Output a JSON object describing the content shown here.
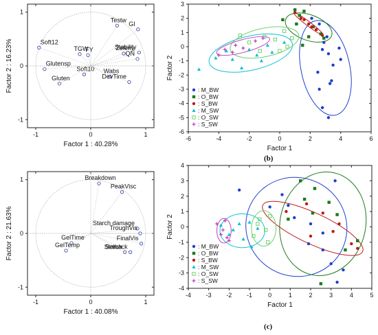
{
  "panel_labels": {
    "b": "(b)",
    "c": "(c)"
  },
  "chart_data": [
    {
      "id": "loadings1",
      "type": "scatter",
      "subtype": "loading-plot",
      "xlabel": "Factor 1 : 40.28%",
      "ylabel": "Factor 2 : 16.23%",
      "xlim": [
        -1.15,
        1.15
      ],
      "ylim": [
        -1.15,
        1.15
      ],
      "xticks": [
        "-1",
        "0",
        "1"
      ],
      "yticks": [
        "1",
        "0",
        "-1"
      ],
      "grid": false,
      "unit_circle": true,
      "points": [
        {
          "label": "Testw",
          "x": 0.48,
          "y": 0.75
        },
        {
          "label": "GI",
          "x": 0.86,
          "y": 0.68
        },
        {
          "label": "Soft12",
          "x": -0.94,
          "y": 0.34
        },
        {
          "label": "TGW",
          "x": -0.2,
          "y": 0.22
        },
        {
          "label": "FY",
          "x": -0.05,
          "y": 0.2
        },
        {
          "label": "Zeleny",
          "x": 0.6,
          "y": 0.23
        },
        {
          "label": "Stability",
          "x": 0.88,
          "y": 0.25
        },
        {
          "label": "QN",
          "x": 0.85,
          "y": 0.13
        },
        {
          "label": "Glutensp",
          "x": -0.84,
          "y": -0.06
        },
        {
          "label": "Soft10",
          "x": -0.12,
          "y": -0.16
        },
        {
          "label": "Wabs",
          "x": 0.35,
          "y": -0.2
        },
        {
          "label": "DevTime",
          "x": 0.7,
          "y": -0.3
        },
        {
          "label": "Gluten",
          "x": -0.57,
          "y": -0.33
        }
      ]
    },
    {
      "id": "scores1",
      "type": "scatter",
      "xlabel": "Factor 1",
      "ylabel": "Factor 2",
      "xlim": [
        -6,
        6
      ],
      "ylim": [
        -6,
        3
      ],
      "xticks": [
        "-6",
        "-4",
        "-2",
        "0",
        "2",
        "4",
        "6"
      ],
      "yticks": [
        "3",
        "2",
        "1",
        "0",
        "-1",
        "-2",
        "-3",
        "-4",
        "-5",
        "-6"
      ],
      "grid": false,
      "legend_position": "bottom-left",
      "series": [
        {
          "name": ": M_BW",
          "color": "#1f3fd0",
          "marker": "dot",
          "points": [
            [
              2.1,
              2.0
            ],
            [
              2.6,
              1.6
            ],
            [
              3.1,
              0.7
            ],
            [
              2.8,
              -0.2
            ],
            [
              3.2,
              -0.5
            ],
            [
              4.0,
              -0.9
            ],
            [
              3.5,
              -1.3
            ],
            [
              2.5,
              -1.8
            ],
            [
              3.3,
              -2.6
            ],
            [
              2.6,
              -3.0
            ],
            [
              2.8,
              -4.3
            ],
            [
              3.2,
              -5.0
            ],
            [
              3.9,
              -0.1
            ],
            [
              3.4,
              -2.4
            ],
            [
              2.9,
              0.3
            ]
          ],
          "ellipse": {
            "cx": 3.0,
            "cy": -1.5,
            "rx": 1.6,
            "ry": 3.4,
            "angle": 12
          }
        },
        {
          "name": ": O_BW",
          "color": "#1a7a1a",
          "marker": "square",
          "points": [
            [
              1.0,
              2.6
            ],
            [
              1.3,
              2.2
            ],
            [
              1.6,
              2.5
            ],
            [
              2.2,
              1.4
            ],
            [
              2.7,
              0.9
            ],
            [
              1.1,
              1.6
            ],
            [
              0.2,
              1.9
            ],
            [
              2.9,
              0.6
            ],
            [
              1.9,
              0.7
            ],
            [
              1.5,
              0.1
            ]
          ],
          "ellipse": {
            "cx": 1.9,
            "cy": 1.35,
            "rx": 1.6,
            "ry": 0.9,
            "angle": -20
          }
        },
        {
          "name": ": S_BW",
          "color": "#c01818",
          "marker": "dot",
          "points": [
            [
              1.0,
              2.4
            ],
            [
              1.4,
              2.0
            ],
            [
              1.9,
              1.6
            ],
            [
              2.4,
              1.2
            ],
            [
              2.8,
              0.8
            ],
            [
              1.6,
              1.9
            ],
            [
              2.1,
              1.4
            ]
          ],
          "ellipse": {
            "cx": 1.9,
            "cy": 1.6,
            "rx": 1.2,
            "ry": 0.15,
            "angle": -37
          }
        },
        {
          "name": ": M_SW",
          "color": "#10c0d0",
          "marker": "triangle",
          "points": [
            [
              -5.3,
              -1.6
            ],
            [
              -3.1,
              -0.9
            ],
            [
              -2.5,
              -1.5
            ],
            [
              -1.2,
              -1.0
            ],
            [
              -0.5,
              -0.4
            ],
            [
              -2.0,
              -0.2
            ],
            [
              -0.8,
              0.1
            ],
            [
              -4.2,
              -0.8
            ],
            [
              -1.5,
              -0.6
            ],
            [
              0.3,
              0.3
            ],
            [
              -3.5,
              -0.3
            ]
          ],
          "ellipse": {
            "cx": -1.9,
            "cy": -0.45,
            "rx": 2.8,
            "ry": 1.2,
            "angle": 13
          }
        },
        {
          "name": ": O_SW",
          "color": "#70d070",
          "marker": "square-open",
          "points": [
            [
              -1.0,
              0.7
            ],
            [
              -0.3,
              0.5
            ],
            [
              0.5,
              0.0
            ],
            [
              -2.0,
              0.3
            ],
            [
              0.8,
              0.6
            ],
            [
              -1.3,
              -0.3
            ],
            [
              0.0,
              -0.3
            ],
            [
              -2.6,
              0.8
            ],
            [
              0.3,
              1.1
            ]
          ],
          "ellipse": {
            "cx": -1.0,
            "cy": 0.3,
            "rx": 2.3,
            "ry": 1.0,
            "angle": 12
          }
        },
        {
          "name": ": S_SW",
          "color": "#c040c0",
          "marker": "plus",
          "points": [
            [
              -4.0,
              -0.6
            ],
            [
              -3.1,
              -0.4
            ],
            [
              -2.4,
              -0.1
            ],
            [
              -1.6,
              0.4
            ],
            [
              -1.1,
              0.6
            ],
            [
              -2.9,
              0.1
            ],
            [
              -3.6,
              -0.2
            ]
          ],
          "ellipse": {
            "cx": -2.4,
            "cy": 0.05,
            "rx": 1.8,
            "ry": 0.45,
            "angle": 15
          }
        }
      ]
    },
    {
      "id": "loadings2",
      "type": "scatter",
      "subtype": "loading-plot",
      "xlabel": "Factor 1 : 40.08%",
      "ylabel": "Factor 2 : 21.63%",
      "xlim": [
        -1.15,
        1.15
      ],
      "ylim": [
        -1.15,
        1.15
      ],
      "xticks": [
        "-1",
        "0",
        "1"
      ],
      "yticks": [
        "1",
        "0",
        "-1"
      ],
      "grid": false,
      "unit_circle": true,
      "points": [
        {
          "label": "Breakdown",
          "x": 0.15,
          "y": 0.93
        },
        {
          "label": "PeakVisc",
          "x": 0.57,
          "y": 0.77
        },
        {
          "label": "Starch damage",
          "x": 0.85,
          "y": 0.09
        },
        {
          "label": "TroughVis",
          "x": 0.9,
          "y": 0.0
        },
        {
          "label": "GelTime",
          "x": -0.35,
          "y": -0.18
        },
        {
          "label": "FinalVis",
          "x": 0.92,
          "y": -0.19
        },
        {
          "label": "GelTemp",
          "x": -0.45,
          "y": -0.32
        },
        {
          "label": "Starch",
          "x": 0.62,
          "y": -0.35
        },
        {
          "label": "Setback",
          "x": 0.72,
          "y": -0.35
        }
      ]
    },
    {
      "id": "scores2",
      "type": "scatter",
      "xlabel": "Factor 1",
      "ylabel": "Factor 2",
      "xlim": [
        -4,
        5
      ],
      "ylim": [
        -4,
        4
      ],
      "xticks": [
        "-4",
        "-3",
        "-2",
        "-1",
        "0",
        "1",
        "2",
        "3",
        "4",
        "5"
      ],
      "yticks": [
        "4",
        "3",
        "2",
        "1",
        "0",
        "-1",
        "-2",
        "-3",
        "-4"
      ],
      "grid": false,
      "legend_position": "bottom-left",
      "series": [
        {
          "name": ": M_BW",
          "color": "#1f3fd0",
          "marker": "dot",
          "points": [
            [
              -1.5,
              2.4
            ],
            [
              0.0,
              1.3
            ],
            [
              0.6,
              2.1
            ],
            [
              1.2,
              0.6
            ],
            [
              2.0,
              0.2
            ],
            [
              2.6,
              -1.5
            ],
            [
              3.0,
              -2.4
            ],
            [
              3.3,
              -3.6
            ],
            [
              3.6,
              -2.8
            ],
            [
              1.9,
              -1.1
            ],
            [
              2.6,
              -0.4
            ],
            [
              3.2,
              3.0
            ],
            [
              0.9,
              1.4
            ]
          ],
          "ellipse": {
            "cx": 1.3,
            "cy": 0.0,
            "rx": 2.5,
            "ry": 3.2,
            "angle": -30
          }
        },
        {
          "name": ": O_BW",
          "color": "#1a7a1a",
          "marker": "square",
          "points": [
            [
              1.5,
              3.0
            ],
            [
              2.2,
              2.5
            ],
            [
              2.9,
              1.6
            ],
            [
              3.3,
              0.8
            ],
            [
              4.3,
              -0.9
            ],
            [
              3.7,
              -1.5
            ],
            [
              0.9,
              0.5
            ],
            [
              2.5,
              -3.7
            ],
            [
              2.1,
              0.9
            ],
            [
              1.7,
              1.8
            ]
          ],
          "ellipse": {
            "cx": 2.6,
            "cy": 0.2,
            "rx": 2.1,
            "ry": 3.4,
            "angle": -12
          }
        },
        {
          "name": ": S_BW",
          "color": "#c01818",
          "marker": "dot",
          "points": [
            [
              0.8,
              1.0
            ],
            [
              1.8,
              1.5
            ],
            [
              2.6,
              0.9
            ],
            [
              3.4,
              0.2
            ],
            [
              4.0,
              -1.1
            ],
            [
              2.0,
              -0.6
            ],
            [
              4.3,
              -1.4
            ],
            [
              3.1,
              -0.3
            ]
          ],
          "ellipse": {
            "cx": 2.1,
            "cy": -0.1,
            "rx": 2.7,
            "ry": 1.0,
            "angle": -25
          }
        },
        {
          "name": ": M_SW",
          "color": "#10c0d0",
          "marker": "triangle",
          "points": [
            [
              -2.0,
              -0.5
            ],
            [
              -1.5,
              0.2
            ],
            [
              -1.0,
              0.3
            ],
            [
              -0.6,
              -0.1
            ],
            [
              -1.3,
              -0.8
            ],
            [
              -2.4,
              0.1
            ],
            [
              -0.9,
              -1.3
            ],
            [
              -1.8,
              -0.2
            ]
          ],
          "ellipse": {
            "cx": -1.35,
            "cy": -0.25,
            "rx": 1.1,
            "ry": 1.1,
            "angle": 0
          }
        },
        {
          "name": ": O_SW",
          "color": "#70d070",
          "marker": "square-open",
          "points": [
            [
              -0.5,
              0.5
            ],
            [
              -0.2,
              -0.2
            ],
            [
              0.0,
              0.7
            ],
            [
              -0.8,
              -0.6
            ],
            [
              -0.1,
              -1.0
            ],
            [
              -0.6,
              0.2
            ]
          ],
          "ellipse": {
            "cx": -0.3,
            "cy": -0.1,
            "rx": 0.6,
            "ry": 1.15,
            "angle": 0
          }
        },
        {
          "name": ": S_SW",
          "color": "#c040c0",
          "marker": "plus",
          "points": [
            [
              -2.3,
              -0.2
            ],
            [
              -2.1,
              -0.7
            ],
            [
              -2.6,
              0.2
            ],
            [
              -2.2,
              0.4
            ],
            [
              -2.0,
              -0.9
            ],
            [
              -2.4,
              -0.5
            ]
          ],
          "ellipse": {
            "cx": -2.25,
            "cy": -0.25,
            "rx": 0.35,
            "ry": 0.8,
            "angle": 0
          }
        }
      ]
    }
  ]
}
